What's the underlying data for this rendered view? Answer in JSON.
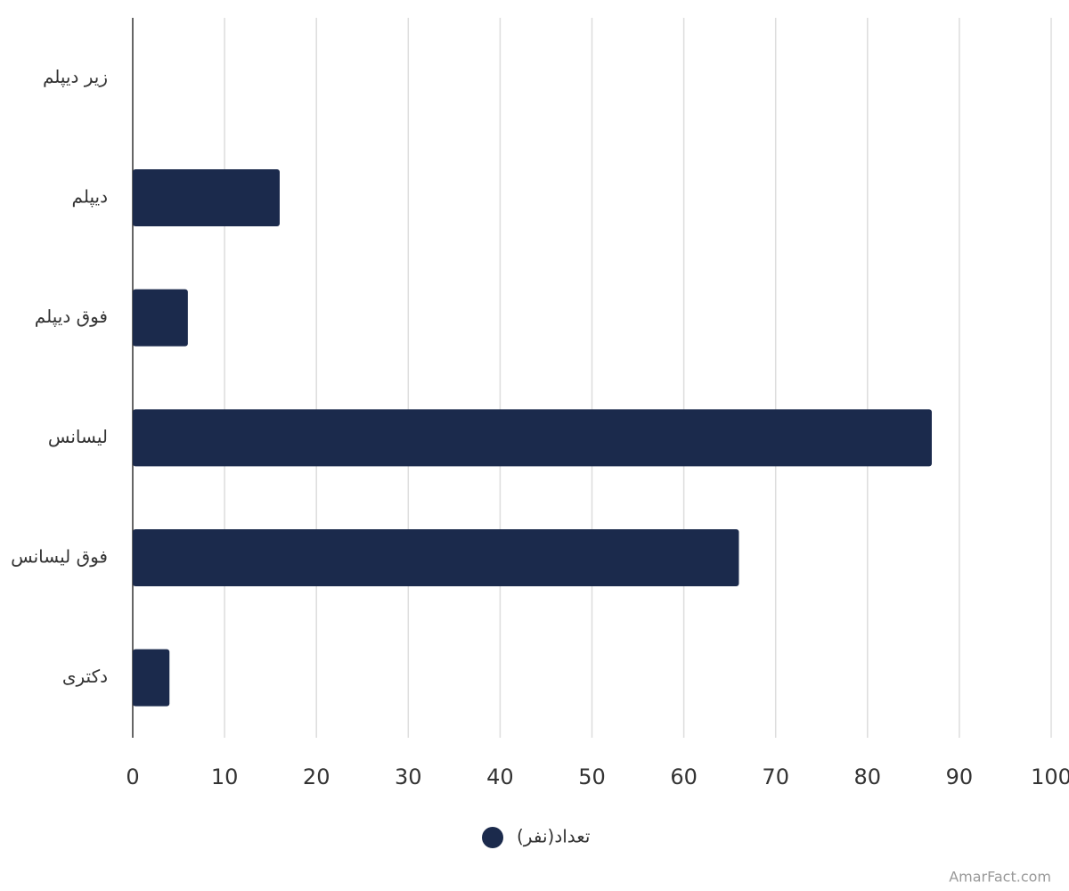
{
  "chart_data": {
    "type": "barh",
    "categories": [
      "زیر دیپلم",
      "دیپلم",
      "فوق دیپلم",
      "لیسانس",
      "فوق لیسانس",
      "دکتری"
    ],
    "series": [
      {
        "name": "تعداد(نفر)",
        "color": "#1b2a4c",
        "values": [
          0,
          16,
          6,
          87,
          66,
          4
        ]
      }
    ],
    "xlim": [
      0,
      100
    ],
    "xticks": [
      0,
      10,
      20,
      30,
      40,
      50,
      60,
      70,
      80,
      90,
      100
    ],
    "grid": true,
    "credit": "AmarFact.com"
  }
}
